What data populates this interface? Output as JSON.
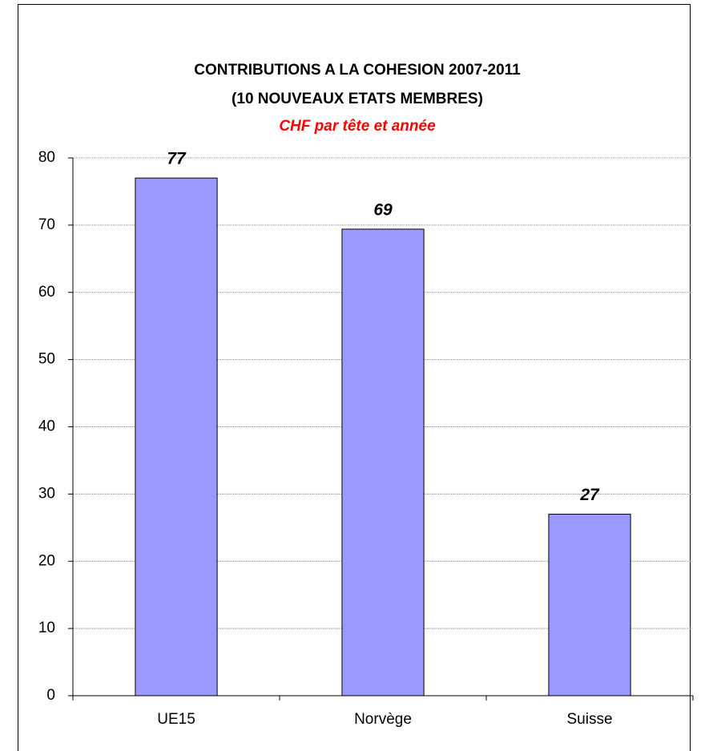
{
  "chart_data": {
    "type": "bar",
    "title": [
      "CONTRIBUTIONS A LA COHESION 2007-2011",
      "(10 NOUVEAUX ETATS MEMBRES)"
    ],
    "subtitle": "CHF par tête et année",
    "categories": [
      "UE15",
      "Norvège",
      "Suisse"
    ],
    "values": [
      77,
      69.4,
      27
    ],
    "value_labels": [
      "77",
      "69",
      "27"
    ],
    "color": "#9999ff",
    "ylim": [
      0,
      80
    ],
    "yticks": [
      0,
      10,
      20,
      30,
      40,
      50,
      60,
      70,
      80
    ],
    "grid": true
  }
}
